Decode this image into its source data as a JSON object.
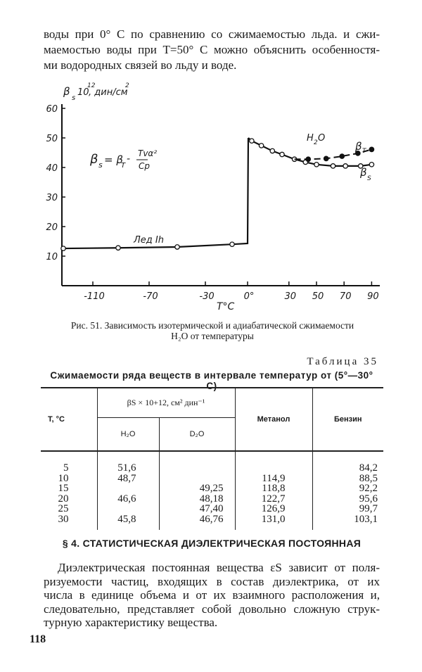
{
  "top_paragraph": [
    "воды при 0° С по сравнению со сжимаемостью льда. и сжи-",
    "маемостью воды при T=50° С можно объяснить особенностя-",
    "ми водородных связей во льду и воде."
  ],
  "chart_data": {
    "type": "line",
    "ylabel": "β",
    "ylabel_sub": "s",
    "ylabel_rest": "10",
    "ylabel_exp": "12",
    "ylabel_unit": ", дин/см",
    "ylabel_unit_exp": "2",
    "xlabel": "T°C",
    "y_ticks": [
      "10",
      "20",
      "30",
      "40",
      "50",
      "60"
    ],
    "y_tick_values": [
      10,
      20,
      30,
      40,
      50,
      60
    ],
    "x_ticks": [
      "-110",
      "-70",
      "-30",
      "0°",
      "30",
      "50",
      "70",
      "90"
    ],
    "x_tick_values": [
      -110,
      -70,
      -30,
      0,
      30,
      50,
      70,
      90
    ],
    "xlim": [
      -131,
      95
    ],
    "ylim": [
      0,
      62
    ],
    "grid": false,
    "formula": {
      "lhs": "β",
      "lhs_sub": "s",
      "eq": "= β",
      "rhs_sub": "T",
      "minus": "-",
      "num": "Tvα²",
      "den": "Cp"
    },
    "annotations": {
      "ice": "Лед Ih",
      "water": "H",
      "water_sub": "2",
      "water_rest": "O",
      "beta_t": "β",
      "beta_t_sub": "T",
      "beta_s": "β",
      "beta_s_sub": "S"
    },
    "series": [
      {
        "label": "ice",
        "style": "solid-open-circles",
        "x": [
          -131,
          -92,
          -50,
          -11
        ],
        "y": [
          12.6,
          12.8,
          13.1,
          14.0
        ],
        "line_end": [
          0,
          14.3
        ]
      },
      {
        "label": "βS",
        "style": "solid-open-circles",
        "x": [
          3,
          10,
          18,
          25,
          34,
          42,
          50,
          62,
          71,
          82,
          90
        ],
        "y": [
          49,
          47.4,
          45.6,
          44.4,
          42.8,
          41.8,
          41,
          40.5,
          40.5,
          40.5,
          41
        ]
      },
      {
        "label": "βT",
        "style": "dashed-filled-circles",
        "x": [
          44,
          57,
          68.5,
          80,
          90
        ],
        "y": [
          42.8,
          43,
          43.8,
          44.8,
          46.1
        ]
      }
    ]
  },
  "caption": [
    "Рис. 51. Зависимость изотермической и адиабатической сжимаемости",
    "H₂O от температуры"
  ],
  "table": {
    "number": "Таблица 35",
    "title": "Сжимаемости ряда веществ в интервале температур от (5°—30° С)",
    "headers": {
      "t": "T, °C",
      "group": "βS × 10+12, см² дин⁻¹",
      "h2o": "H₂O",
      "d2o": "D₂O",
      "methanol": "Метанол",
      "benzene": "Бензин"
    },
    "columns": {
      "t": [
        "5",
        "10",
        "15",
        "20",
        "25",
        "30"
      ],
      "h2o": [
        "51,6",
        "48,7",
        "",
        "46,6",
        "",
        "45,8"
      ],
      "d2o": [
        "",
        "",
        "49,25",
        "48,18",
        "47,40",
        "46,76"
      ],
      "methanol": [
        "",
        "114,9",
        "118,8",
        "122,7",
        "126,9",
        "131,0"
      ],
      "benzene": [
        "84,2",
        "88,5",
        "92,2",
        "95,6",
        "99,7",
        "103,1"
      ]
    }
  },
  "section_heading": "§ 4. СТАТИСТИЧЕСКАЯ ДИЭЛЕКТРИЧЕСКАЯ ПОСТОЯННАЯ",
  "bottom_paragraph": [
    "Диэлектрическая постоянная вещества εS зависит от поля-",
    "ризуемости частиц, входящих  в состав диэлектрика, от их",
    "числа в единице объема и от их взаимного расположения и,",
    "следовательно, представляет собой довольно сложную струк-",
    "турную характеристику вещества."
  ],
  "page_number": "118"
}
